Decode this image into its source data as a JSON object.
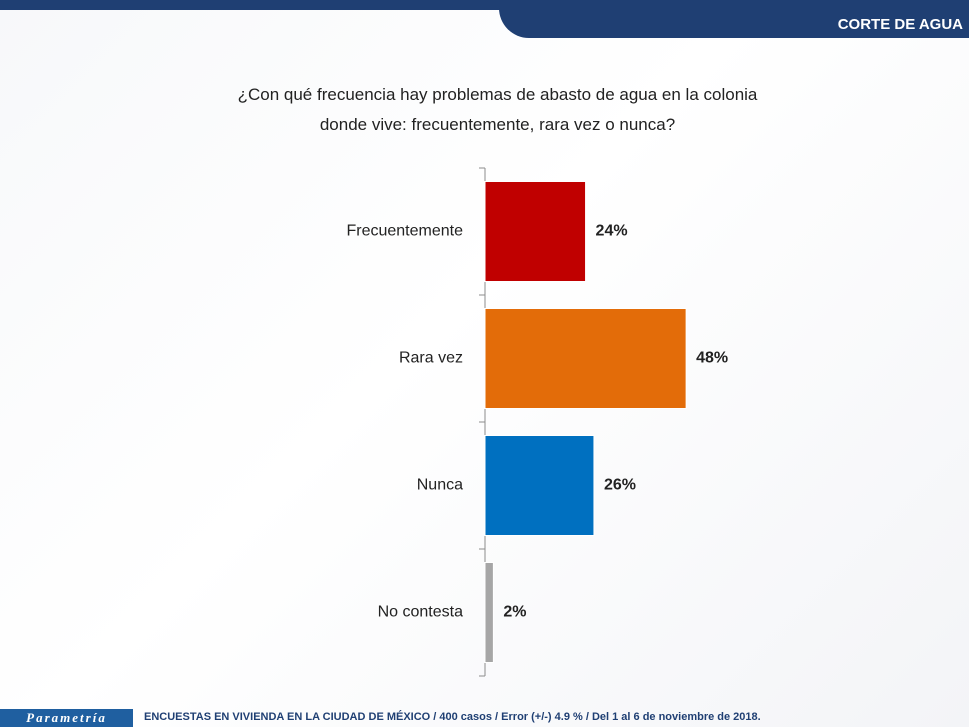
{
  "chart_data": {
    "type": "bar",
    "orientation": "horizontal",
    "header": "CORTE DE AGUA",
    "title": "¿Con qué frecuencia hay problemas de abasto de agua en la colonia donde vive: frecuentemente, rara vez o nunca?",
    "categories": [
      "Frecuentemente",
      "Rara vez",
      "Nunca",
      "No contesta"
    ],
    "values": [
      24,
      48,
      26,
      2
    ],
    "value_labels": [
      "24%",
      "48%",
      "26%",
      "2%"
    ],
    "colors": [
      "#c00000",
      "#e36c09",
      "#0070c0",
      "#a6a6a6"
    ],
    "footer_brand": "Parametría",
    "footer_note": "ENCUESTAS EN VIVIENDA EN LA CIUDAD DE MÉXICO / 400 casos / Error (+/-) 4.9 % / Del 1 al 6 de noviembre de 2018."
  }
}
